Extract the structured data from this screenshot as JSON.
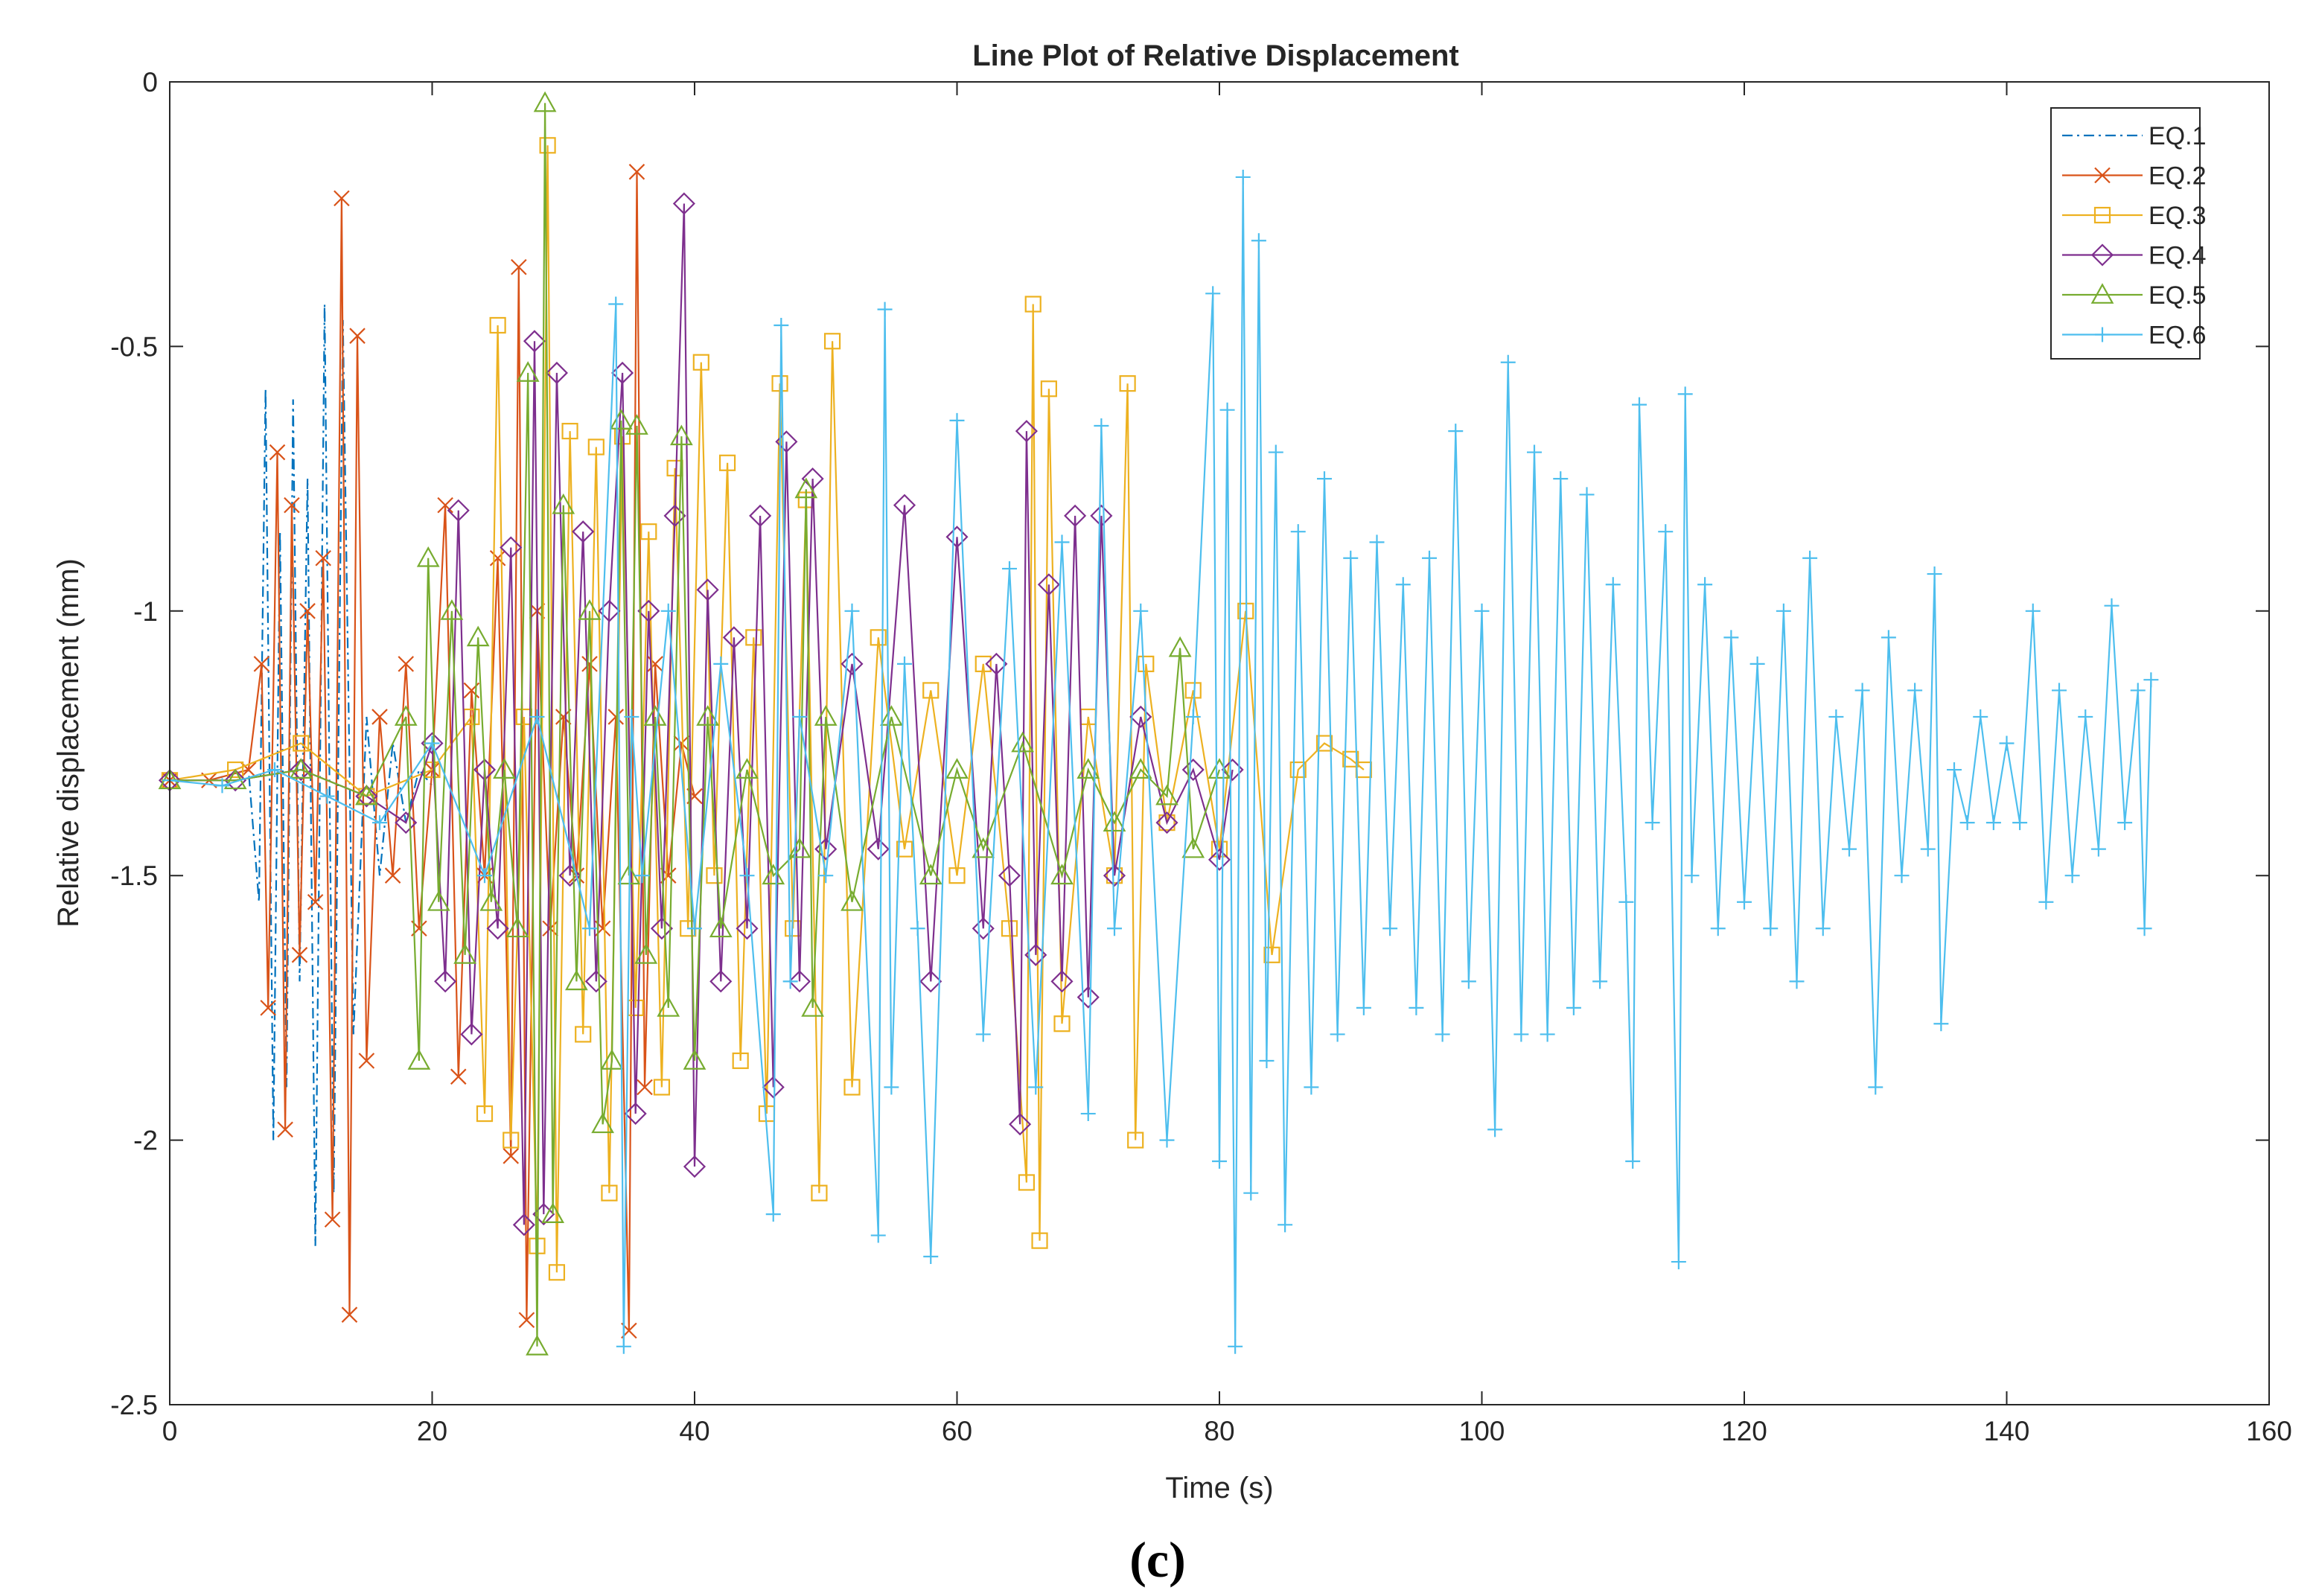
{
  "chart_data": {
    "type": "line",
    "title": "Line Plot of Relative Displacement",
    "xlabel": "Time (s)",
    "ylabel": "Relative displacement (mm)",
    "xlim": [
      0,
      160
    ],
    "ylim": [
      -2.5,
      0
    ],
    "xticks": [
      "0",
      "20",
      "40",
      "60",
      "80",
      "100",
      "120",
      "140",
      "160"
    ],
    "yticks": [
      "0",
      "-0.5",
      "-1",
      "-1.5",
      "-2",
      "-2.5"
    ],
    "legend_position": "top-right",
    "grid": false,
    "caption": "(c)",
    "series": [
      {
        "name": "EQ.1",
        "color": "#0072BD",
        "dash": "dashdot",
        "marker": "none",
        "x": [
          0,
          3,
          6,
          6.8,
          7.3,
          7.9,
          8.4,
          8.9,
          9.4,
          9.9,
          10.5,
          11.1,
          11.8,
          12.5,
          13.2,
          14.0,
          15,
          16,
          17,
          18,
          19,
          20
        ],
        "y": [
          -1.32,
          -1.32,
          -1.3,
          -1.55,
          -0.58,
          -2.0,
          -0.85,
          -1.9,
          -0.6,
          -1.7,
          -0.75,
          -2.2,
          -0.42,
          -2.1,
          -0.45,
          -1.8,
          -1.2,
          -1.5,
          -1.25,
          -1.4,
          -1.3,
          -1.33
        ]
      },
      {
        "name": "EQ.2",
        "color": "#D95319",
        "dash": "solid",
        "marker": "x",
        "x": [
          0,
          3,
          6,
          7,
          7.5,
          8.2,
          8.8,
          9.3,
          9.9,
          10.5,
          11.1,
          11.7,
          12.4,
          13.1,
          13.7,
          14.3,
          15,
          16,
          17,
          18,
          19,
          20,
          21,
          22,
          23,
          24,
          25,
          26,
          26.6,
          27.2,
          28,
          29,
          30,
          31,
          32,
          33,
          34,
          35,
          35.6,
          36.2,
          37,
          38,
          39,
          40
        ],
        "y": [
          -1.32,
          -1.32,
          -1.3,
          -1.1,
          -1.75,
          -0.7,
          -1.98,
          -0.8,
          -1.65,
          -1.0,
          -1.55,
          -0.9,
          -2.15,
          -0.22,
          -2.33,
          -0.48,
          -1.85,
          -1.2,
          -1.5,
          -1.1,
          -1.6,
          -1.3,
          -0.8,
          -1.88,
          -1.15,
          -1.5,
          -0.9,
          -2.03,
          -0.35,
          -2.34,
          -1.0,
          -1.6,
          -1.2,
          -1.5,
          -1.1,
          -1.6,
          -1.2,
          -2.36,
          -0.17,
          -1.9,
          -1.1,
          -1.5,
          -1.25,
          -1.35
        ]
      },
      {
        "name": "EQ.3",
        "color": "#EDB120",
        "dash": "solid",
        "marker": "square",
        "x": [
          0,
          5,
          10,
          15,
          20,
          23,
          24,
          25,
          26,
          27,
          28,
          28.8,
          29.5,
          30.5,
          31.5,
          32.5,
          33.5,
          34.5,
          35.5,
          36.5,
          37.5,
          38.5,
          39.5,
          40.5,
          41.5,
          42.5,
          43.5,
          44.5,
          45.5,
          46.5,
          47.5,
          48.5,
          49.5,
          50.5,
          52,
          54,
          56,
          58,
          60,
          62,
          64,
          65.3,
          65.8,
          66.3,
          67,
          68,
          70,
          72,
          73,
          73.6,
          74.4,
          76,
          78,
          80,
          82,
          84,
          86,
          88,
          90,
          91
        ],
        "y": [
          -1.32,
          -1.3,
          -1.25,
          -1.35,
          -1.3,
          -1.2,
          -1.95,
          -0.46,
          -2.0,
          -1.2,
          -2.2,
          -0.12,
          -2.25,
          -0.66,
          -1.8,
          -0.69,
          -2.1,
          -0.67,
          -1.75,
          -0.85,
          -1.9,
          -0.73,
          -1.6,
          -0.53,
          -1.5,
          -0.72,
          -1.85,
          -1.05,
          -1.95,
          -0.57,
          -1.6,
          -0.79,
          -2.1,
          -0.49,
          -1.9,
          -1.05,
          -1.45,
          -1.15,
          -1.5,
          -1.1,
          -1.6,
          -2.08,
          -0.42,
          -2.19,
          -0.58,
          -1.78,
          -1.2,
          -1.5,
          -0.57,
          -2.0,
          -1.1,
          -1.4,
          -1.15,
          -1.45,
          -1.0,
          -1.65,
          -1.3,
          -1.25,
          -1.28,
          -1.3
        ]
      },
      {
        "name": "EQ.4",
        "color": "#7E2F8E",
        "dash": "solid",
        "marker": "diamond",
        "x": [
          0,
          5,
          10,
          15,
          18,
          20,
          21,
          22,
          23,
          24,
          25,
          26,
          27,
          27.8,
          28.5,
          29.5,
          30.5,
          31.5,
          32.5,
          33.5,
          34.5,
          35.5,
          36.5,
          37.5,
          38.5,
          39.2,
          40,
          41,
          42,
          43,
          44,
          45,
          46,
          47,
          48,
          49,
          50,
          52,
          54,
          56,
          58,
          60,
          62,
          63,
          64,
          64.8,
          65.3,
          66,
          67,
          68,
          69,
          70,
          71,
          72,
          74,
          76,
          78,
          80,
          81
        ],
        "y": [
          -1.32,
          -1.32,
          -1.3,
          -1.35,
          -1.4,
          -1.25,
          -1.7,
          -0.81,
          -1.8,
          -1.3,
          -1.6,
          -0.88,
          -2.16,
          -0.49,
          -2.14,
          -0.55,
          -1.5,
          -0.85,
          -1.7,
          -1.0,
          -0.55,
          -1.95,
          -1.0,
          -1.6,
          -0.82,
          -0.23,
          -2.05,
          -0.96,
          -1.7,
          -1.05,
          -1.6,
          -0.82,
          -1.9,
          -0.68,
          -1.7,
          -0.75,
          -1.45,
          -1.1,
          -1.45,
          -0.8,
          -1.7,
          -0.86,
          -1.6,
          -1.1,
          -1.5,
          -1.97,
          -0.66,
          -1.65,
          -0.95,
          -1.7,
          -0.82,
          -1.73,
          -0.82,
          -1.5,
          -1.2,
          -1.4,
          -1.3,
          -1.47,
          -1.3
        ]
      },
      {
        "name": "EQ.5",
        "color": "#77AC30",
        "dash": "solid",
        "marker": "triangle",
        "x": [
          0,
          5,
          10,
          15,
          18,
          19,
          19.7,
          20.5,
          21.5,
          22.5,
          23.5,
          24.5,
          25.5,
          26.5,
          27.3,
          28,
          28.6,
          29.2,
          30,
          31,
          32,
          33,
          33.7,
          34.4,
          35,
          35.6,
          36.3,
          37,
          38,
          39,
          40,
          41,
          42,
          44,
          46,
          48,
          48.5,
          49,
          50,
          52,
          55,
          58,
          60,
          62,
          65,
          68,
          70,
          72,
          74,
          76,
          77,
          78,
          80
        ],
        "y": [
          -1.32,
          -1.32,
          -1.3,
          -1.35,
          -1.2,
          -1.85,
          -0.9,
          -1.55,
          -1.0,
          -1.65,
          -1.05,
          -1.55,
          -1.3,
          -1.6,
          -0.55,
          -2.39,
          -0.04,
          -2.14,
          -0.8,
          -1.7,
          -1.0,
          -1.97,
          -1.85,
          -0.64,
          -1.5,
          -0.65,
          -1.65,
          -1.2,
          -1.75,
          -0.67,
          -1.85,
          -1.2,
          -1.6,
          -1.3,
          -1.5,
          -1.45,
          -0.77,
          -1.75,
          -1.2,
          -1.55,
          -1.2,
          -1.5,
          -1.3,
          -1.45,
          -1.25,
          -1.5,
          -1.3,
          -1.4,
          -1.3,
          -1.35,
          -1.07,
          -1.45,
          -1.3
        ]
      },
      {
        "name": "EQ.6",
        "color": "#4DBEEE",
        "dash": "solid",
        "marker": "plus",
        "x": [
          0,
          4,
          8,
          12,
          16,
          20,
          24,
          28,
          32,
          34,
          34.6,
          35.2,
          36,
          38,
          40,
          42,
          44,
          46,
          46.6,
          47.3,
          48,
          50,
          52,
          54,
          54.5,
          55,
          56,
          57,
          58,
          60,
          62,
          64,
          66,
          68,
          70,
          71,
          72,
          74,
          76,
          78,
          79.5,
          80,
          80.6,
          81.2,
          81.8,
          82.4,
          83,
          83.6,
          84.3,
          85,
          86,
          87,
          88,
          89,
          90,
          91,
          92,
          93,
          94,
          95,
          96,
          97,
          98,
          99,
          100,
          101,
          102,
          103,
          104,
          105,
          106,
          107,
          108,
          109,
          110,
          111,
          111.5,
          112,
          113,
          114,
          115,
          115.5,
          116,
          117,
          118,
          119,
          120,
          121,
          122,
          123,
          124,
          125,
          126,
          127,
          128,
          129,
          130,
          131,
          132,
          133,
          134,
          134.5,
          135,
          136,
          137,
          138,
          139,
          140,
          141,
          142,
          143,
          144,
          145,
          146,
          147,
          148,
          149,
          150,
          150.5,
          151
        ],
        "y": [
          -1.32,
          -1.33,
          -1.3,
          -1.35,
          -1.4,
          -1.25,
          -1.5,
          -1.2,
          -1.6,
          -0.42,
          -2.39,
          -1.2,
          -1.5,
          -1.0,
          -1.6,
          -1.1,
          -1.5,
          -2.14,
          -0.46,
          -1.7,
          -1.2,
          -1.5,
          -1.0,
          -2.18,
          -0.43,
          -1.9,
          -1.1,
          -1.6,
          -2.22,
          -0.64,
          -1.8,
          -0.92,
          -1.9,
          -0.87,
          -1.95,
          -0.65,
          -1.6,
          -1.0,
          -2.0,
          -1.2,
          -0.4,
          -2.04,
          -0.62,
          -2.39,
          -0.18,
          -2.1,
          -0.3,
          -1.85,
          -0.7,
          -2.16,
          -0.85,
          -1.9,
          -0.75,
          -1.8,
          -0.9,
          -1.75,
          -0.87,
          -1.6,
          -0.95,
          -1.75,
          -0.9,
          -1.8,
          -0.66,
          -1.7,
          -1.0,
          -1.98,
          -0.53,
          -1.8,
          -0.7,
          -1.8,
          -0.75,
          -1.75,
          -0.78,
          -1.7,
          -0.95,
          -1.55,
          -2.04,
          -0.61,
          -1.4,
          -0.85,
          -2.23,
          -0.59,
          -1.5,
          -0.95,
          -1.6,
          -1.05,
          -1.55,
          -1.1,
          -1.6,
          -1.0,
          -1.7,
          -0.9,
          -1.6,
          -1.2,
          -1.45,
          -1.15,
          -1.9,
          -1.05,
          -1.5,
          -1.15,
          -1.45,
          -0.93,
          -1.78,
          -1.3,
          -1.4,
          -1.2,
          -1.4,
          -1.25,
          -1.4,
          -1.0,
          -1.55,
          -1.15,
          -1.5,
          -1.2,
          -1.45,
          -0.99,
          -1.4,
          -1.15,
          -1.6,
          -1.13
        ]
      }
    ]
  }
}
